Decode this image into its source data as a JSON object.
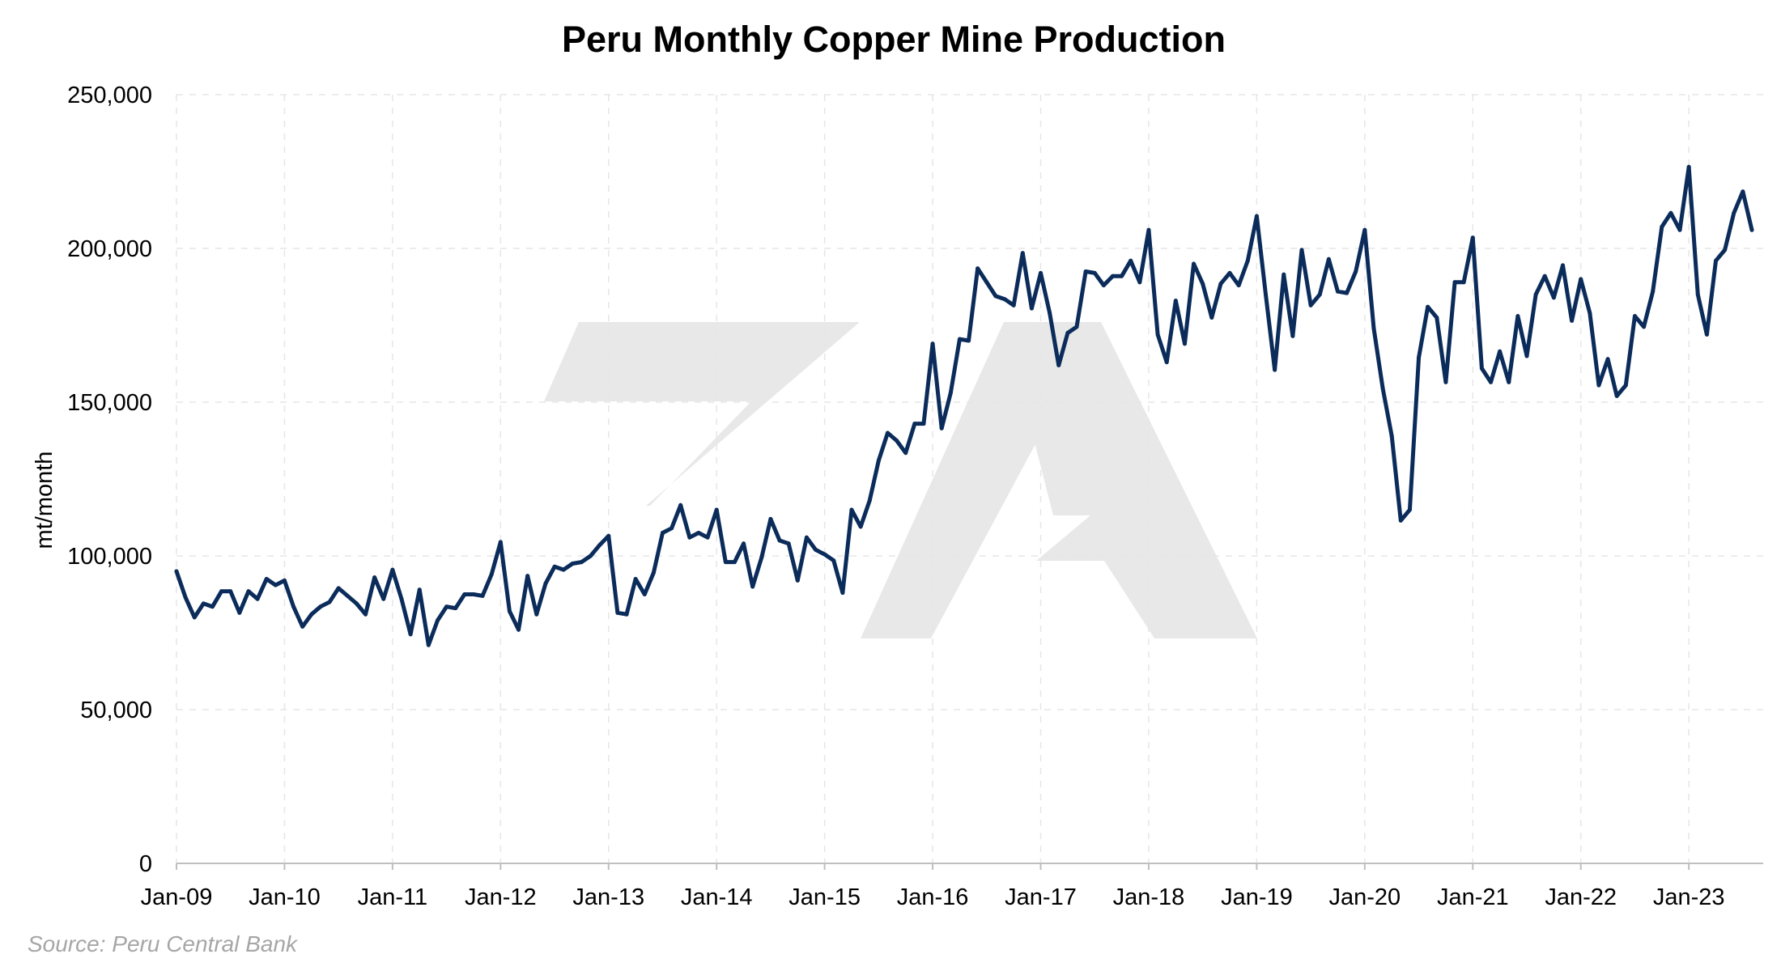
{
  "colors": {
    "line": "#0b2c5a",
    "watermark": "#e8e8e8",
    "grid": "#e6e6e6",
    "source": "#a6a6a6"
  },
  "watermark": {
    "icon": "7a-logo-watermark"
  },
  "source_note": "Source: Peru Central Bank",
  "chart_data": {
    "type": "line",
    "title": "Peru Monthly Copper Mine Production",
    "xlabel": "",
    "ylabel": "mt/month",
    "ylim": [
      0,
      250000
    ],
    "grid": true,
    "yticks": [
      0,
      50000,
      100000,
      150000,
      200000,
      250000
    ],
    "ytick_labels": [
      "0",
      "50,000",
      "100,000",
      "150,000",
      "200,000",
      "250,000"
    ],
    "xticks": [
      "Jan-09",
      "Jan-10",
      "Jan-11",
      "Jan-12",
      "Jan-13",
      "Jan-14",
      "Jan-15",
      "Jan-16",
      "Jan-17",
      "Jan-18",
      "Jan-19",
      "Jan-20",
      "Jan-21",
      "Jan-22",
      "Jan-23"
    ],
    "x_start": "Jan-09",
    "x_end": "Aug-23",
    "x": [
      "Jan-09",
      "Feb-09",
      "Mar-09",
      "Apr-09",
      "May-09",
      "Jun-09",
      "Jul-09",
      "Aug-09",
      "Sep-09",
      "Oct-09",
      "Nov-09",
      "Dec-09",
      "Jan-10",
      "Feb-10",
      "Mar-10",
      "Apr-10",
      "May-10",
      "Jun-10",
      "Jul-10",
      "Aug-10",
      "Sep-10",
      "Oct-10",
      "Nov-10",
      "Dec-10",
      "Jan-11",
      "Feb-11",
      "Mar-11",
      "Apr-11",
      "May-11",
      "Jun-11",
      "Jul-11",
      "Aug-11",
      "Sep-11",
      "Oct-11",
      "Nov-11",
      "Dec-11",
      "Jan-12",
      "Feb-12",
      "Mar-12",
      "Apr-12",
      "May-12",
      "Jun-12",
      "Jul-12",
      "Aug-12",
      "Sep-12",
      "Oct-12",
      "Nov-12",
      "Dec-12",
      "Jan-13",
      "Feb-13",
      "Mar-13",
      "Apr-13",
      "May-13",
      "Jun-13",
      "Jul-13",
      "Aug-13",
      "Sep-13",
      "Oct-13",
      "Nov-13",
      "Dec-13",
      "Jan-14",
      "Feb-14",
      "Mar-14",
      "Apr-14",
      "May-14",
      "Jun-14",
      "Jul-14",
      "Aug-14",
      "Sep-14",
      "Oct-14",
      "Nov-14",
      "Dec-14",
      "Jan-15",
      "Feb-15",
      "Mar-15",
      "Apr-15",
      "May-15",
      "Jun-15",
      "Jul-15",
      "Aug-15",
      "Sep-15",
      "Oct-15",
      "Nov-15",
      "Dec-15",
      "Jan-16",
      "Feb-16",
      "Mar-16",
      "Apr-16",
      "May-16",
      "Jun-16",
      "Jul-16",
      "Aug-16",
      "Sep-16",
      "Oct-16",
      "Nov-16",
      "Dec-16",
      "Jan-17",
      "Feb-17",
      "Mar-17",
      "Apr-17",
      "May-17",
      "Jun-17",
      "Jul-17",
      "Aug-17",
      "Sep-17",
      "Oct-17",
      "Nov-17",
      "Dec-17",
      "Jan-18",
      "Feb-18",
      "Mar-18",
      "Apr-18",
      "May-18",
      "Jun-18",
      "Jul-18",
      "Aug-18",
      "Sep-18",
      "Oct-18",
      "Nov-18",
      "Dec-18",
      "Jan-19",
      "Feb-19",
      "Mar-19",
      "Apr-19",
      "May-19",
      "Jun-19",
      "Jul-19",
      "Aug-19",
      "Sep-19",
      "Oct-19",
      "Nov-19",
      "Dec-19",
      "Jan-20",
      "Feb-20",
      "Mar-20",
      "Apr-20",
      "May-20",
      "Jun-20",
      "Jul-20",
      "Aug-20",
      "Sep-20",
      "Oct-20",
      "Nov-20",
      "Dec-20",
      "Jan-21",
      "Feb-21",
      "Mar-21",
      "Apr-21",
      "May-21",
      "Jun-21",
      "Jul-21",
      "Aug-21",
      "Sep-21",
      "Oct-21",
      "Nov-21",
      "Dec-21",
      "Jan-22",
      "Feb-22",
      "Mar-22",
      "Apr-22",
      "May-22",
      "Jun-22",
      "Jul-22",
      "Aug-22",
      "Sep-22",
      "Oct-22",
      "Nov-22",
      "Dec-22",
      "Jan-23",
      "Feb-23",
      "Mar-23",
      "Apr-23",
      "May-23",
      "Jun-23",
      "Jul-23",
      "Aug-23"
    ],
    "series": [
      {
        "values": [
          95000,
          86500,
          80000,
          84500,
          83500,
          88500,
          88500,
          81500,
          88500,
          86000,
          92500,
          90500,
          92000,
          83500,
          77000,
          81000,
          83500,
          85000,
          89500,
          87000,
          84500,
          81000,
          93000,
          86000,
          95500,
          86000,
          74500,
          89000,
          71000,
          79000,
          83500,
          83000,
          87500,
          87500,
          87000,
          94000,
          104500,
          82000,
          76000,
          93500,
          81000,
          91000,
          96500,
          95500,
          97500,
          98000,
          100000,
          103500,
          106500,
          81500,
          81000,
          92500,
          87500,
          94500,
          107500,
          109000,
          116500,
          106000,
          107500,
          106000,
          115000,
          98000,
          98000,
          104000,
          90000,
          99500,
          112000,
          105000,
          104000,
          92000,
          106000,
          102000,
          100500,
          98500,
          88000,
          115000,
          109500,
          118000,
          131000,
          140000,
          137500,
          133500,
          143000,
          143000,
          169000,
          141500,
          153000,
          170500,
          170000,
          193500,
          189000,
          184500,
          183500,
          181500,
          198500,
          180500,
          192000,
          179000,
          162000,
          172500,
          174500,
          192500,
          192000,
          188000,
          191000,
          191000,
          196000,
          189000,
          206000,
          172000,
          163000,
          183000,
          169000,
          195000,
          188500,
          177500,
          188500,
          192000,
          188000,
          196000,
          210500,
          185000,
          160500,
          191500,
          171500,
          199500,
          181500,
          185000,
          196500,
          186000,
          185500,
          192500,
          206000,
          174000,
          154500,
          139000,
          111500,
          115000,
          164500,
          181000,
          177500,
          156500,
          189000,
          189000,
          203500,
          161000,
          156500,
          166500,
          156500,
          178000,
          165000,
          185000,
          191000,
          184000,
          194500,
          176500,
          190000,
          179000,
          155500,
          164000,
          152000,
          155500,
          178000,
          174500,
          186000,
          207000,
          211500,
          206000,
          226500,
          185000,
          172000,
          196000,
          199500,
          211500,
          218500,
          206000
        ]
      }
    ]
  }
}
